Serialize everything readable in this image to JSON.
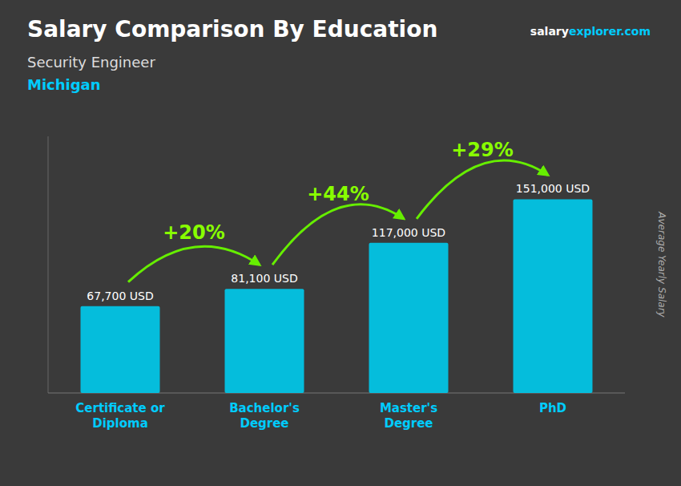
{
  "chart_data": {
    "type": "bar",
    "title": "Salary Comparison By Education",
    "subtitle": [
      "Security Engineer",
      "Michigan"
    ],
    "ylabel": "Average Yearly Salary",
    "categories": [
      "Certificate or\nDiploma",
      "Bachelor's\nDegree",
      "Master's\nDegree",
      "PhD"
    ],
    "values": [
      67700,
      81100,
      117000,
      151000
    ],
    "value_labels": [
      "67,700 USD",
      "81,100 USD",
      "117,000 USD",
      "151,000 USD"
    ],
    "data_labels": true,
    "color": "#00ccee",
    "ylim": [
      0,
      200000
    ],
    "tick_labels": "x",
    "grid": false,
    "annotations": [
      {
        "text": "+20%",
        "from": 0,
        "to": 1
      },
      {
        "text": "+44%",
        "from": 1,
        "to": 2
      },
      {
        "text": "+29%",
        "from": 2,
        "to": 3
      }
    ],
    "website": [
      "salary",
      "explorer",
      ".com"
    ]
  }
}
